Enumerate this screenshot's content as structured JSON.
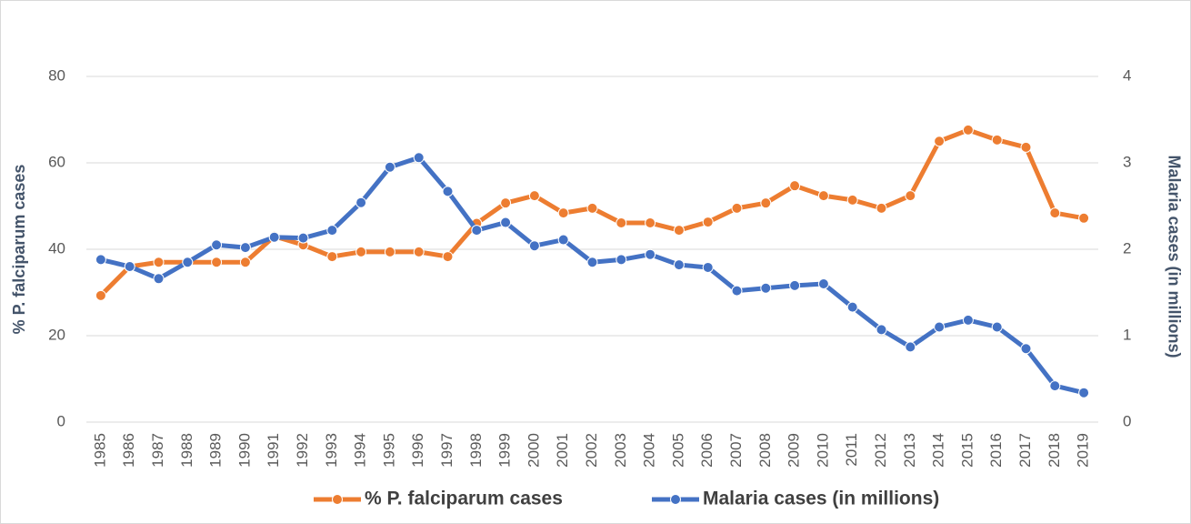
{
  "chart_data": {
    "type": "line",
    "categories": [
      "1985",
      "1986",
      "1987",
      "1988",
      "1989",
      "1990",
      "1991",
      "1992",
      "1993",
      "1994",
      "1995",
      "1996",
      "1997",
      "1998",
      "1999",
      "2000",
      "2001",
      "2002",
      "2003",
      "2004",
      "2005",
      "2006",
      "2007",
      "2008",
      "2009",
      "2010",
      "2011",
      "2012",
      "2013",
      "2014",
      "2015",
      "2016",
      "2017",
      "2018",
      "2019"
    ],
    "series": [
      {
        "name": "% P. falciparum cases",
        "color": "#ed7d31",
        "axis": "y",
        "values": [
          29.3,
          36,
          37,
          37,
          37,
          37,
          43,
          41,
          38.3,
          39.4,
          39.4,
          39.4,
          38.3,
          46,
          50.7,
          52.4,
          48.4,
          49.5,
          46.1,
          46.1,
          44.4,
          46.3,
          49.5,
          50.7,
          54.7,
          52.4,
          51.4,
          49.5,
          52.4,
          65,
          67.6,
          65.3,
          63.6,
          48.4,
          47.2
        ]
      },
      {
        "name": "Malaria cases (in millions)",
        "color": "#4472c4",
        "axis": "y2",
        "values": [
          1.88,
          1.8,
          1.66,
          1.85,
          2.05,
          2.02,
          2.14,
          2.13,
          2.22,
          2.54,
          2.95,
          3.06,
          2.67,
          2.22,
          2.31,
          2.04,
          2.11,
          1.85,
          1.88,
          1.94,
          1.82,
          1.79,
          1.52,
          1.55,
          1.58,
          1.6,
          1.33,
          1.07,
          0.87,
          1.1,
          1.18,
          1.1,
          0.85,
          0.42,
          0.34
        ]
      }
    ],
    "ylabel": "% P. falciparum cases",
    "y2label": "Malaria cases (in millions)",
    "ylim": [
      0,
      80
    ],
    "yticks": [
      0,
      20,
      40,
      60,
      80
    ],
    "y2lim": [
      0,
      4
    ],
    "y2ticks": [
      0,
      1,
      2,
      3,
      4
    ],
    "grid": true,
    "legend": "bottom"
  }
}
